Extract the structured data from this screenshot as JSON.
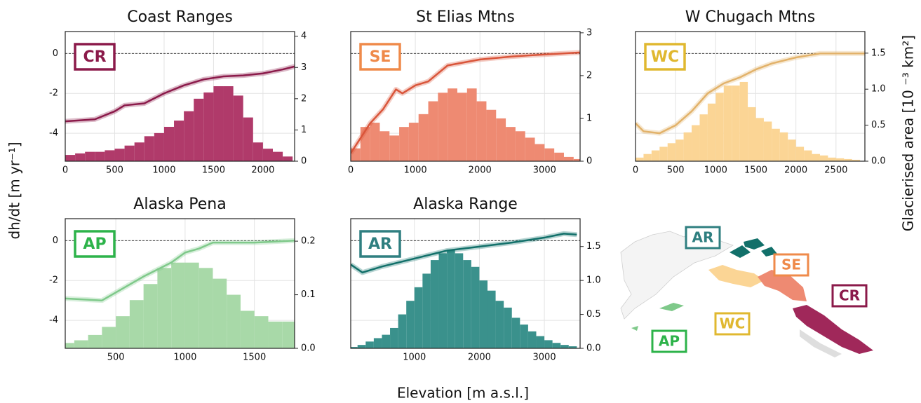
{
  "figure": {
    "xlabel": "Elevation [m a.s.l.]",
    "ylabel": "dh/dt [m yr⁻¹]",
    "y2label": "Glacierised area [10 ⁻³ km²]"
  },
  "chart_data": [
    {
      "type": "combo",
      "title": "Coast Ranges",
      "badge": "CR",
      "badge_color": "#8b1a4a",
      "grid": true,
      "hline": 0,
      "show_ytick_labels": true,
      "xlim": [
        0,
        2320
      ],
      "xticks": [
        0,
        500,
        1000,
        1500,
        2000
      ],
      "ylim": [
        -5.4,
        1.1
      ],
      "yticks": [
        -4,
        -2,
        0
      ],
      "y2lim": [
        0,
        4.15
      ],
      "y2ticks": [
        0,
        1,
        2,
        3,
        4
      ],
      "histogram": {
        "axis": "y2",
        "color": "#b03a6a",
        "bins": [
          0,
          100,
          200,
          300,
          400,
          500,
          600,
          700,
          800,
          900,
          1000,
          1100,
          1200,
          1300,
          1400,
          1500,
          1600,
          1700,
          1800,
          1900,
          2000,
          2100,
          2200,
          2300
        ],
        "values": [
          0.2,
          0.25,
          0.3,
          0.3,
          0.35,
          0.4,
          0.5,
          0.6,
          0.8,
          0.9,
          1.1,
          1.3,
          1.6,
          2.0,
          2.2,
          2.4,
          2.4,
          2.1,
          1.4,
          0.6,
          0.4,
          0.3,
          0.15
        ]
      },
      "series": [
        {
          "color": "#8b1a4a",
          "x": [
            0,
            300,
            500,
            600,
            800,
            1000,
            1200,
            1400,
            1600,
            1800,
            2000,
            2200,
            2320
          ],
          "values": [
            -3.4,
            -3.3,
            -2.9,
            -2.6,
            -2.5,
            -2.0,
            -1.6,
            -1.3,
            -1.15,
            -1.1,
            -1.0,
            -0.8,
            -0.65
          ]
        }
      ]
    },
    {
      "type": "combo",
      "title": "St Elias Mtns",
      "badge": "SE",
      "badge_color": "#ef8a4a",
      "grid": true,
      "hline": 0,
      "show_ytick_labels": false,
      "xlim": [
        0,
        3550
      ],
      "xticks": [
        0,
        1000,
        2000,
        3000
      ],
      "ylim": [
        -5.4,
        1.1
      ],
      "yticks": [
        -4,
        -2,
        0
      ],
      "y2lim": [
        0,
        3.03
      ],
      "y2ticks": [
        0,
        1,
        2,
        3
      ],
      "histogram": {
        "axis": "y2",
        "color": "#ee8a72",
        "bins": [
          0,
          150,
          300,
          450,
          600,
          750,
          900,
          1050,
          1200,
          1350,
          1500,
          1650,
          1800,
          1950,
          2100,
          2250,
          2400,
          2550,
          2700,
          2850,
          3000,
          3150,
          3300,
          3450,
          3600
        ],
        "values": [
          0.3,
          0.8,
          0.9,
          0.7,
          0.6,
          0.8,
          0.9,
          1.1,
          1.4,
          1.6,
          1.7,
          1.6,
          1.7,
          1.4,
          1.2,
          1.0,
          0.8,
          0.7,
          0.55,
          0.4,
          0.3,
          0.2,
          0.1,
          0.05
        ]
      },
      "series": [
        {
          "color": "#d9553a",
          "x": [
            0,
            100,
            300,
            500,
            700,
            800,
            1000,
            1200,
            1500,
            2000,
            2500,
            3000,
            3550
          ],
          "values": [
            -5.0,
            -4.5,
            -3.5,
            -2.8,
            -1.8,
            -2.0,
            -1.6,
            -1.4,
            -0.6,
            -0.3,
            -0.15,
            -0.05,
            0.05
          ]
        }
      ]
    },
    {
      "type": "combo",
      "title": "W Chugach Mtns",
      "badge": "WC",
      "badge_color": "#e0b830",
      "grid": true,
      "hline": 0,
      "show_ytick_labels": false,
      "xlim": [
        0,
        2860
      ],
      "xticks": [
        0,
        500,
        1000,
        1500,
        2000,
        2500
      ],
      "ylim": [
        -5.4,
        1.1
      ],
      "yticks": [
        -4,
        -2,
        0
      ],
      "y2lim": [
        0,
        1.8
      ],
      "y2ticks": [
        {
          "value": 0,
          "label": "0.0"
        },
        0.5,
        {
          "value": 1,
          "label": "1.0"
        },
        1.5
      ],
      "histogram": {
        "axis": "y2",
        "color": "#fbd595",
        "bins": [
          0,
          100,
          200,
          300,
          400,
          500,
          600,
          700,
          800,
          900,
          1000,
          1100,
          1200,
          1300,
          1400,
          1500,
          1600,
          1700,
          1800,
          1900,
          2000,
          2100,
          2200,
          2300,
          2400,
          2500,
          2600,
          2700,
          2800
        ],
        "values": [
          0.05,
          0.1,
          0.15,
          0.2,
          0.25,
          0.3,
          0.4,
          0.5,
          0.65,
          0.8,
          0.95,
          1.05,
          1.05,
          1.1,
          0.75,
          0.6,
          0.55,
          0.45,
          0.4,
          0.3,
          0.2,
          0.15,
          0.1,
          0.08,
          0.05,
          0.04,
          0.03,
          0.02
        ]
      },
      "series": [
        {
          "color": "#e2b26a",
          "x": [
            0,
            100,
            300,
            500,
            700,
            900,
            1100,
            1300,
            1500,
            1700,
            2000,
            2300,
            2860
          ],
          "values": [
            -3.5,
            -3.9,
            -4.0,
            -3.6,
            -2.9,
            -2.0,
            -1.5,
            -1.2,
            -0.8,
            -0.5,
            -0.2,
            0.0,
            0.0
          ]
        }
      ]
    },
    {
      "type": "combo",
      "title": "Alaska Pena",
      "badge": "AP",
      "badge_color": "#2db34a",
      "grid": true,
      "hline": 0,
      "show_ytick_labels": true,
      "xlim": [
        135,
        1790
      ],
      "xticks": [
        500,
        1000,
        1500
      ],
      "ylim": [
        -5.4,
        1.1
      ],
      "yticks": [
        -4,
        -2,
        0
      ],
      "y2lim": [
        0,
        0.242
      ],
      "y2ticks": [
        {
          "value": 0,
          "label": "0.0"
        },
        0.1,
        0.2
      ],
      "histogram": {
        "axis": "y2",
        "color": "#a8d9a8",
        "bins": [
          100,
          200,
          300,
          400,
          500,
          600,
          700,
          800,
          900,
          1000,
          1100,
          1200,
          1300,
          1400,
          1500,
          1600,
          1700,
          1800
        ],
        "values": [
          0.01,
          0.015,
          0.025,
          0.04,
          0.06,
          0.09,
          0.12,
          0.15,
          0.16,
          0.16,
          0.15,
          0.13,
          0.1,
          0.07,
          0.06,
          0.05,
          0.05
        ]
      },
      "series": [
        {
          "color": "#7fc98a",
          "x": [
            135,
            400,
            500,
            700,
            900,
            1000,
            1100,
            1200,
            1500,
            1790
          ],
          "values": [
            -2.9,
            -3.0,
            -2.6,
            -1.8,
            -1.1,
            -0.6,
            -0.4,
            -0.1,
            -0.1,
            0.0
          ]
        }
      ]
    },
    {
      "type": "combo",
      "title": "Alaska Range",
      "badge": "AR",
      "badge_color": "#2f7f80",
      "grid": true,
      "hline": 0,
      "show_ytick_labels": false,
      "xlim": [
        20,
        3550
      ],
      "xticks": [
        1000,
        2000,
        3000
      ],
      "ylim": [
        -5.4,
        1.1
      ],
      "yticks": [
        -4,
        -2,
        0
      ],
      "y2lim": [
        0,
        1.91
      ],
      "y2ticks": [
        {
          "value": 0,
          "label": "0.0"
        },
        0.5,
        {
          "value": 1,
          "label": "1.0"
        },
        1.5
      ],
      "histogram": {
        "axis": "y2",
        "color": "#3a918c",
        "bins": [
          0,
          125,
          250,
          375,
          500,
          625,
          750,
          875,
          1000,
          1125,
          1250,
          1375,
          1500,
          1625,
          1750,
          1875,
          2000,
          2125,
          2250,
          2375,
          2500,
          2625,
          2750,
          2875,
          3000,
          3125,
          3250,
          3375,
          3500
        ],
        "values": [
          0.02,
          0.05,
          0.1,
          0.15,
          0.2,
          0.3,
          0.5,
          0.7,
          0.9,
          1.1,
          1.3,
          1.4,
          1.45,
          1.4,
          1.3,
          1.2,
          1.0,
          0.85,
          0.7,
          0.6,
          0.45,
          0.35,
          0.25,
          0.18,
          0.12,
          0.08,
          0.05,
          0.03
        ]
      },
      "series": [
        {
          "color": "#12706a",
          "x": [
            20,
            200,
            500,
            1000,
            1500,
            2000,
            2500,
            3000,
            3300,
            3500
          ],
          "values": [
            -1.2,
            -1.6,
            -1.3,
            -0.9,
            -0.5,
            -0.3,
            -0.1,
            0.15,
            0.35,
            0.3
          ]
        }
      ]
    }
  ],
  "map": {
    "labels": [
      {
        "text": "AR",
        "color": "#2f7f80"
      },
      {
        "text": "SE",
        "color": "#ef8a4a"
      },
      {
        "text": "WC",
        "color": "#e0b830"
      },
      {
        "text": "CR",
        "color": "#8b1a4a"
      },
      {
        "text": "AP",
        "color": "#2db34a"
      }
    ]
  }
}
